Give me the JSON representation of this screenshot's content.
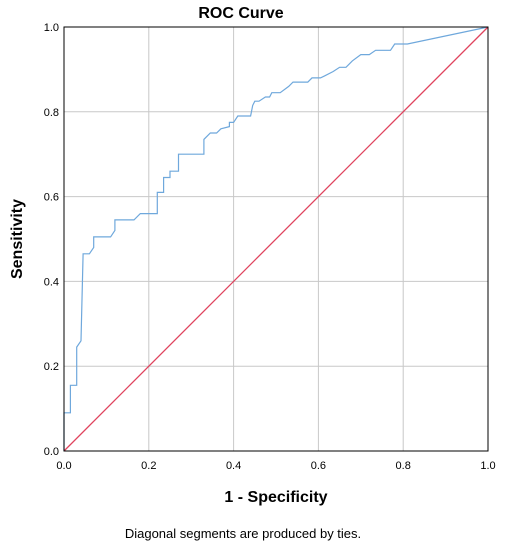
{
  "chart_data": {
    "type": "line",
    "title": "ROC Curve",
    "xlabel": "1 - Specificity",
    "ylabel": "Sensitivity",
    "footnote": "Diagonal segments are produced by ties.",
    "xlim": [
      0,
      1
    ],
    "ylim": [
      0,
      1
    ],
    "x_ticks": [
      "0.0",
      "0.2",
      "0.4",
      "0.6",
      "0.8",
      "1.0"
    ],
    "y_ticks": [
      "0.0",
      "0.2",
      "0.4",
      "0.6",
      "0.8",
      "1.0"
    ],
    "grid": true,
    "colors": {
      "roc": "#6fa8dc",
      "reference": "#e0445e",
      "grid": "#c8c8c8",
      "axis": "#000000"
    },
    "series": [
      {
        "key": "roc",
        "points": [
          [
            0.0,
            0.0
          ],
          [
            0.0,
            0.09
          ],
          [
            0.015,
            0.09
          ],
          [
            0.015,
            0.155
          ],
          [
            0.03,
            0.155
          ],
          [
            0.03,
            0.245
          ],
          [
            0.04,
            0.26
          ],
          [
            0.045,
            0.465
          ],
          [
            0.06,
            0.465
          ],
          [
            0.07,
            0.48
          ],
          [
            0.07,
            0.505
          ],
          [
            0.11,
            0.505
          ],
          [
            0.12,
            0.52
          ],
          [
            0.12,
            0.545
          ],
          [
            0.165,
            0.545
          ],
          [
            0.18,
            0.56
          ],
          [
            0.22,
            0.56
          ],
          [
            0.22,
            0.61
          ],
          [
            0.235,
            0.61
          ],
          [
            0.235,
            0.645
          ],
          [
            0.25,
            0.645
          ],
          [
            0.25,
            0.66
          ],
          [
            0.27,
            0.66
          ],
          [
            0.27,
            0.7
          ],
          [
            0.33,
            0.7
          ],
          [
            0.33,
            0.735
          ],
          [
            0.345,
            0.75
          ],
          [
            0.36,
            0.75
          ],
          [
            0.37,
            0.76
          ],
          [
            0.39,
            0.765
          ],
          [
            0.39,
            0.775
          ],
          [
            0.4,
            0.775
          ],
          [
            0.41,
            0.79
          ],
          [
            0.44,
            0.79
          ],
          [
            0.445,
            0.815
          ],
          [
            0.45,
            0.825
          ],
          [
            0.46,
            0.825
          ],
          [
            0.475,
            0.835
          ],
          [
            0.485,
            0.835
          ],
          [
            0.49,
            0.845
          ],
          [
            0.51,
            0.845
          ],
          [
            0.53,
            0.86
          ],
          [
            0.54,
            0.87
          ],
          [
            0.575,
            0.87
          ],
          [
            0.585,
            0.88
          ],
          [
            0.605,
            0.88
          ],
          [
            0.615,
            0.885
          ],
          [
            0.635,
            0.895
          ],
          [
            0.65,
            0.905
          ],
          [
            0.665,
            0.905
          ],
          [
            0.68,
            0.92
          ],
          [
            0.7,
            0.935
          ],
          [
            0.72,
            0.935
          ],
          [
            0.735,
            0.945
          ],
          [
            0.77,
            0.945
          ],
          [
            0.78,
            0.96
          ],
          [
            0.81,
            0.96
          ],
          [
            1.0,
            1.0
          ]
        ]
      },
      {
        "key": "reference",
        "points": [
          [
            0.0,
            0.0
          ],
          [
            1.0,
            1.0
          ]
        ]
      }
    ]
  }
}
